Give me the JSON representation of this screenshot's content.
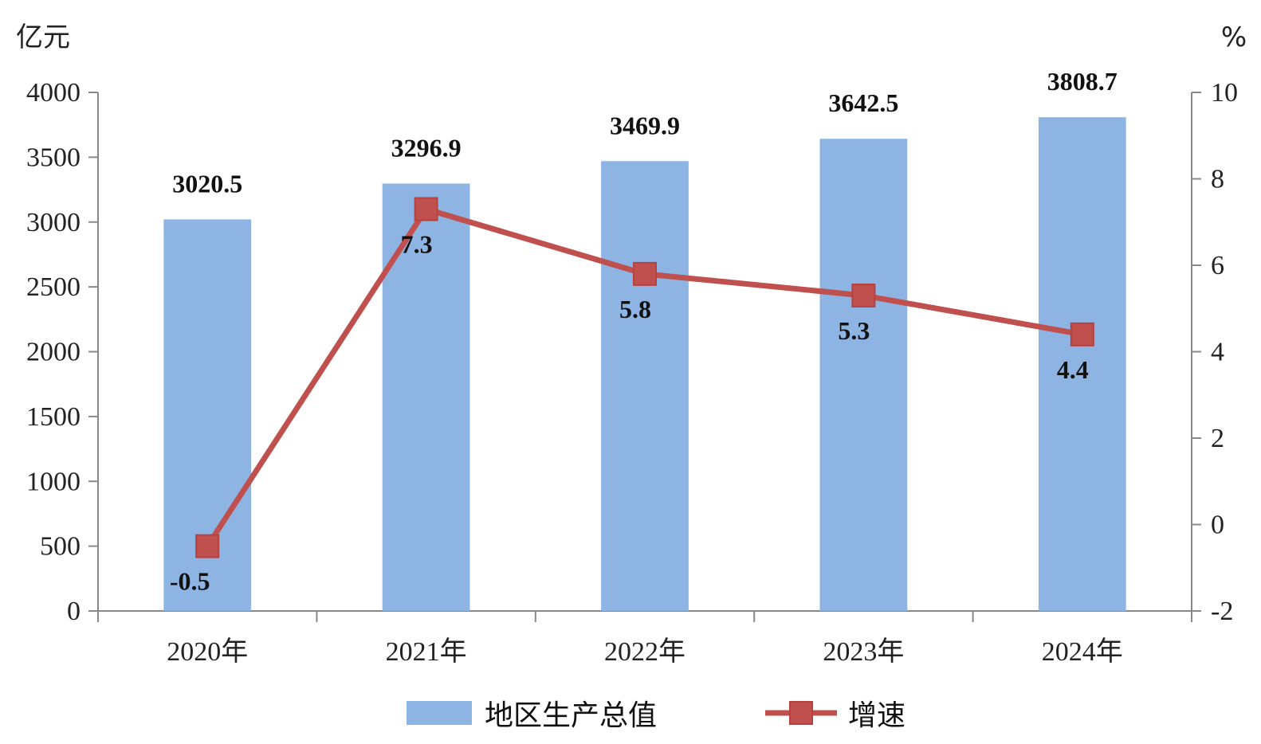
{
  "chart_data": {
    "type": "bar",
    "categories": [
      "2020年",
      "2021年",
      "2022年",
      "2023年",
      "2024年"
    ],
    "series": [
      {
        "name": "地区生产总值",
        "type": "bar",
        "axis": "left",
        "color": "#8EB4E3",
        "values": [
          3020.5,
          3296.9,
          3469.9,
          3642.5,
          3808.7
        ],
        "labels": [
          "3020.5",
          "3296.9",
          "3469.9",
          "3642.5",
          "3808.7"
        ]
      },
      {
        "name": "增速",
        "type": "line",
        "axis": "right",
        "color": "#C0504D",
        "marker": "square",
        "values": [
          -0.5,
          7.3,
          5.8,
          5.3,
          4.4
        ],
        "labels": [
          "-0.5",
          "7.3",
          "5.8",
          "5.3",
          "4.4"
        ]
      }
    ],
    "y_left": {
      "unit": "亿元",
      "range": [
        0,
        4000
      ],
      "ticks": [
        "0",
        "500",
        "1000",
        "1500",
        "2000",
        "2500",
        "3000",
        "3500",
        "4000"
      ]
    },
    "y_right": {
      "unit": "%",
      "range": [
        -2,
        10
      ],
      "ticks": [
        "-2",
        "0",
        "2",
        "4",
        "6",
        "8",
        "10"
      ]
    },
    "grid": false,
    "legend": "bottom"
  },
  "colors": {
    "axis": "#888888",
    "bar": "#8EB4E3",
    "line": "#C0504D",
    "marker_edge": "#B5423F"
  }
}
